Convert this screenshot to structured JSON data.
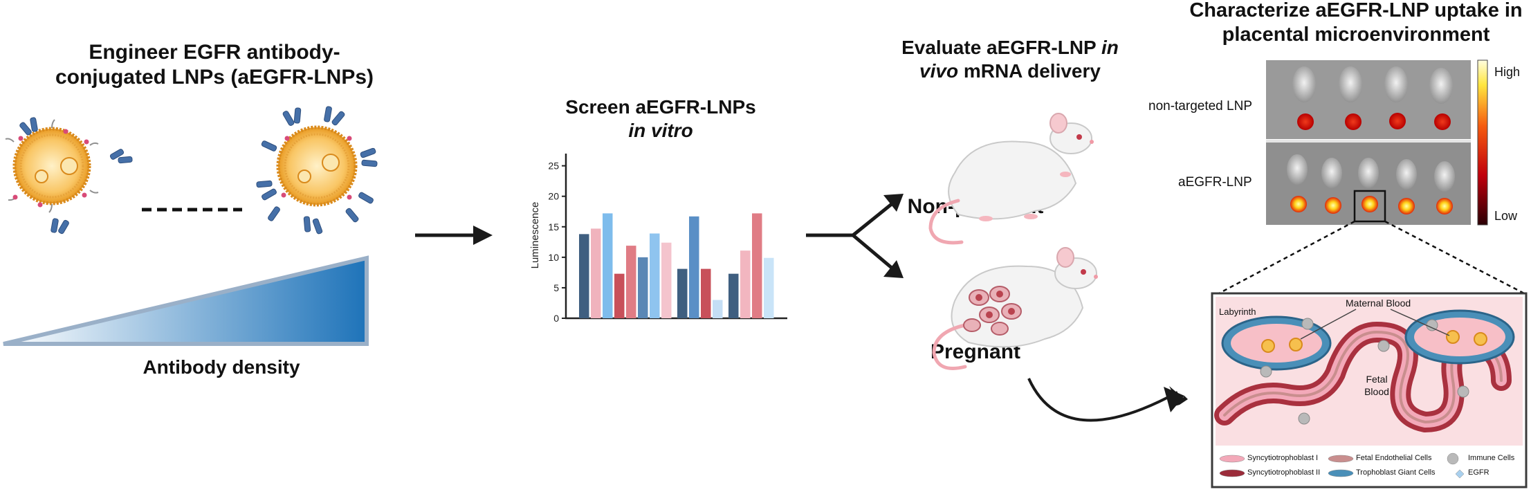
{
  "steps": {
    "engineer": {
      "title_line1": "Engineer EGFR antibody-",
      "title_line2": "conjugated LNPs (aEGFR-LNPs)",
      "gradient_label": "Antibody density"
    },
    "screen": {
      "title_line1": "Screen aEGFR-LNPs",
      "title_line2": "in vitro"
    },
    "evaluate": {
      "title_part1": "Evaluate aEGFR-LNP ",
      "title_italic1": "in",
      "title_italic2": "vivo",
      "title_part2": " mRNA delivery",
      "mouse1": "Non-pregnant",
      "mouse2": "Pregnant"
    },
    "characterize": {
      "title_line1": "Characterize aEGFR-LNP uptake in",
      "title_line2": "placental microenvironment",
      "row1_label": "non-targeted LNP",
      "row2_label": "aEGFR-LNP",
      "scale_high": "High",
      "scale_low": "Low"
    }
  },
  "placenta": {
    "labyrinth": "Labyrinth",
    "maternal_blood": "Maternal Blood",
    "fetal_blood_line1": "Fetal",
    "fetal_blood_line2": "Blood",
    "legend": [
      {
        "label": "Syncytiotrophoblast I",
        "color": "#f3a9b9"
      },
      {
        "label": "Syncytiotrophoblast II",
        "color": "#9b2c3a"
      },
      {
        "label": "Fetal Endothelial Cells",
        "color": "#c98e8e"
      },
      {
        "label": "Trophoblast Giant Cells",
        "color": "#4a8fb8"
      },
      {
        "label": "Immune Cells",
        "color": "#b9b9b9"
      },
      {
        "label": "EGFR",
        "color": "#a9d0ee"
      }
    ]
  },
  "chart_data": {
    "type": "bar",
    "title": "",
    "ylabel": "Luminescence",
    "xlabel": "",
    "ylim": [
      0,
      27
    ],
    "yticks": [
      "0",
      "5",
      "10",
      "15",
      "20",
      "25"
    ],
    "groups": [
      {
        "values": [
          13.8,
          14.7,
          17.2,
          7.3,
          11.9,
          10.0,
          13.9,
          12.4
        ],
        "colors": [
          "#3f5f80",
          "#f0b3bd",
          "#7ebcec",
          "#c8505a",
          "#e07c85",
          "#5a87b5",
          "#8fc4ef",
          "#f4c4cd"
        ]
      },
      {
        "values": [
          8.1,
          16.7,
          8.1,
          3.0
        ],
        "colors": [
          "#3f5f80",
          "#5a8fc6",
          "#c8505a",
          "#c4def5"
        ]
      },
      {
        "values": [
          7.3,
          11.1,
          17.2,
          9.9
        ],
        "colors": [
          "#3f5f80",
          "#f2b6c0",
          "#e07c85",
          "#c9e4f8"
        ]
      }
    ]
  },
  "colors": {
    "lnp_core": "#f6b23c",
    "antibody": "#4670a8",
    "gradient_dark": "#1e73b9",
    "arrow": "#1a1a1a"
  }
}
